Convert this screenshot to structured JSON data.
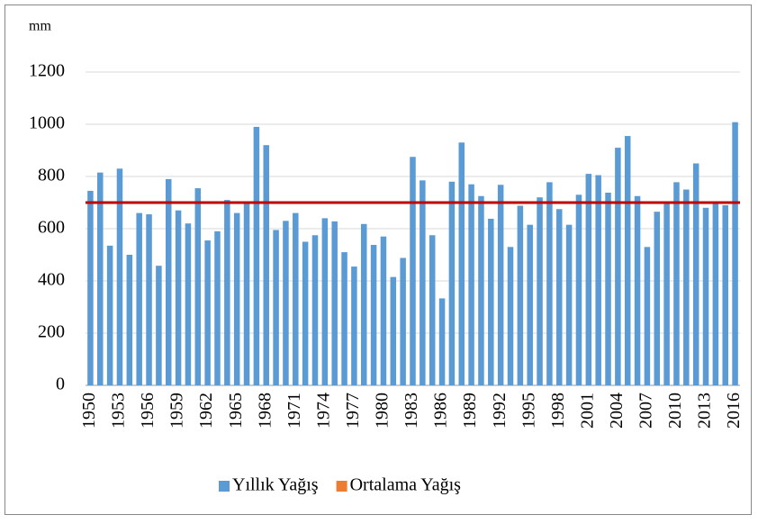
{
  "chart_data": {
    "type": "bar",
    "y_axis_label": "mm",
    "categories": [
      "1950",
      null,
      null,
      "1953",
      null,
      null,
      "1956",
      null,
      null,
      "1959",
      null,
      null,
      "1962",
      null,
      null,
      "1965",
      null,
      null,
      "1968",
      null,
      null,
      "1971",
      null,
      null,
      "1974",
      null,
      null,
      "1977",
      null,
      null,
      "1980",
      null,
      null,
      "1983",
      null,
      null,
      "1986",
      null,
      null,
      "1989",
      null,
      null,
      "1992",
      null,
      null,
      "1995",
      null,
      null,
      "1998",
      null,
      null,
      "2001",
      null,
      null,
      "2004",
      null,
      null,
      "2007",
      null,
      null,
      "2010",
      null,
      null,
      "2013",
      null,
      null,
      "2016"
    ],
    "series": [
      {
        "name": "Yıllık Yağış",
        "color": "#5b9bd5",
        "values": [
          745,
          815,
          535,
          830,
          500,
          660,
          655,
          458,
          790,
          670,
          620,
          755,
          555,
          590,
          710,
          660,
          700,
          990,
          920,
          595,
          630,
          660,
          550,
          575,
          640,
          628,
          510,
          455,
          618,
          538,
          570,
          415,
          488,
          875,
          785,
          575,
          333,
          780,
          930,
          770,
          725,
          638,
          768,
          530,
          688,
          615,
          720,
          778,
          675,
          615,
          730,
          810,
          805,
          738,
          910,
          955,
          725,
          530,
          665,
          700,
          778,
          750,
          850,
          680,
          695,
          690,
          1008
        ]
      },
      {
        "name": "Ortalama Yağış",
        "type": "hline",
        "color": "#c00000",
        "legend_color": "#ed7d31",
        "value": 700
      }
    ],
    "ylim": [
      0,
      1200
    ],
    "yticks": [
      0,
      200,
      400,
      600,
      800,
      1000,
      1200
    ],
    "grid": true,
    "legend": "bottom"
  }
}
